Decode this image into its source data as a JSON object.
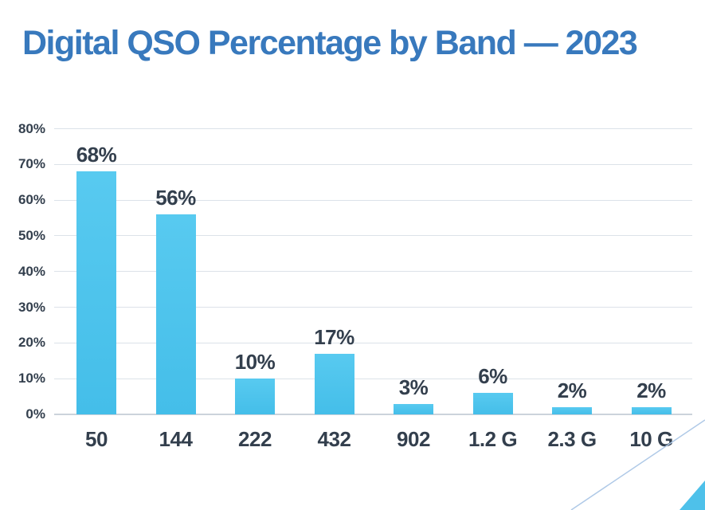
{
  "title": "Digital QSO Percentage by Band — 2023",
  "colors": {
    "title_blue": "#3879BD",
    "text_dark": "#333F4D",
    "gridline": "#DCE2E9",
    "axis_line": "#CCD3DB",
    "bar_top": "#58CAF0",
    "bar_bottom": "#44BEE9",
    "decor_line": "#AFC9E7",
    "decor_triangle": "#4EC1EA"
  },
  "chart_data": {
    "type": "bar",
    "title": "Digital QSO Percentage by Band — 2023",
    "categories": [
      "50",
      "144",
      "222",
      "432",
      "902",
      "1.2 G",
      "2.3 G",
      "10 G"
    ],
    "values": [
      68,
      56,
      10,
      17,
      3,
      6,
      2,
      2
    ],
    "value_labels": [
      "68%",
      "56%",
      "10%",
      "17%",
      "3%",
      "6%",
      "2%",
      "2%"
    ],
    "xlabel": "",
    "ylabel": "",
    "ylim": [
      0,
      80
    ],
    "ytick_interval": 10,
    "yticks": [
      "0%",
      "10%",
      "20%",
      "30%",
      "40%",
      "50%",
      "60%",
      "70%",
      "80%"
    ],
    "grid": true,
    "legend": false
  }
}
